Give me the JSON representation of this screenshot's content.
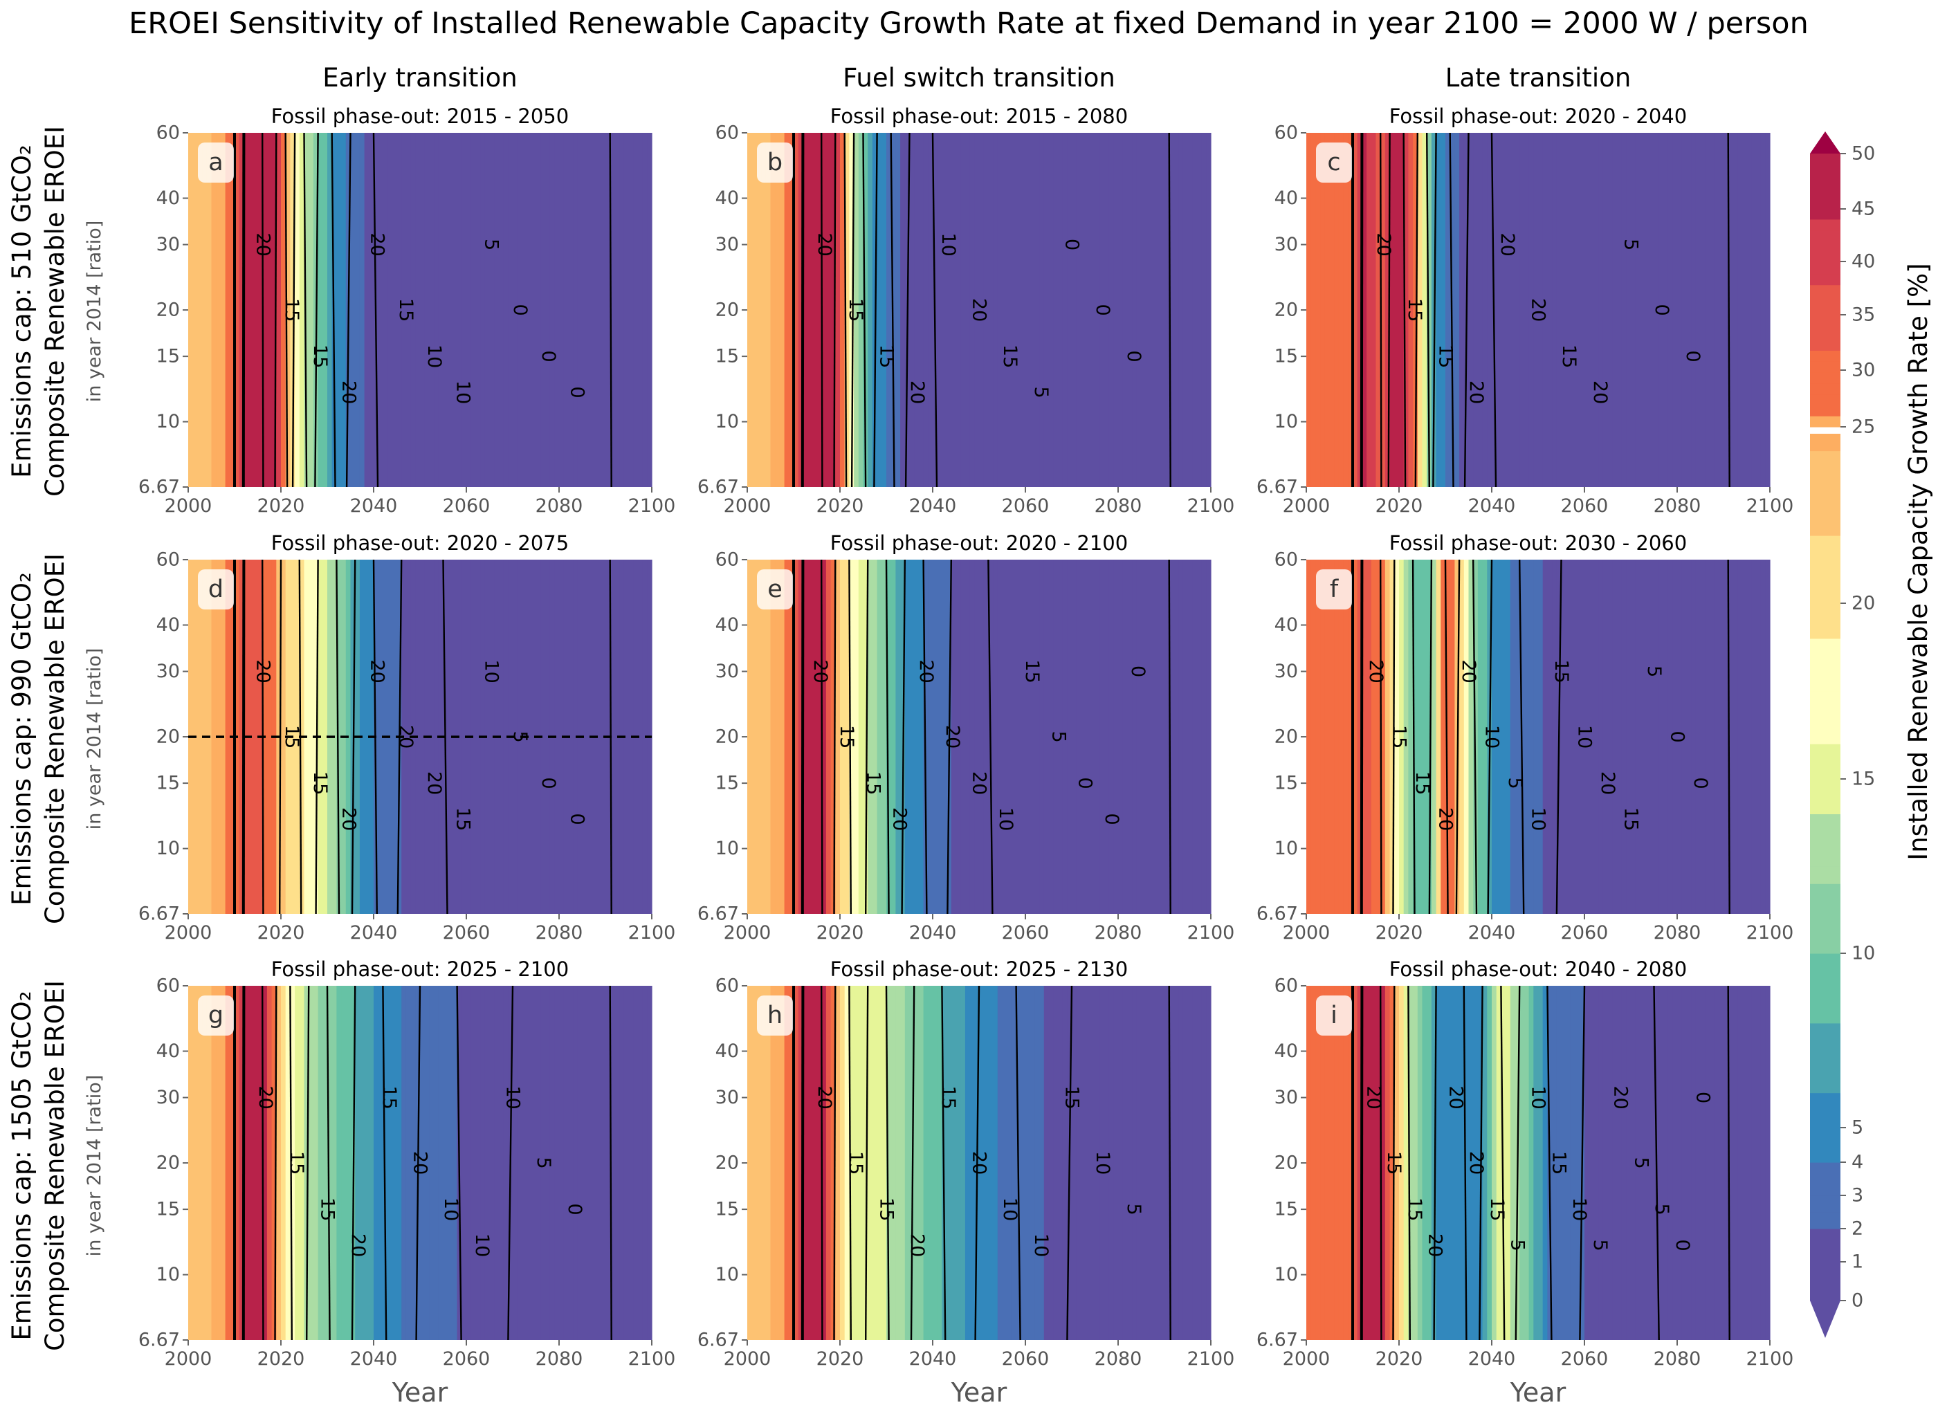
{
  "figure": {
    "title": "EROEI Sensitivity of Installed Renewable Capacity Growth Rate at fixed Demand in year 2100 = 2000 W / person",
    "columns": [
      "Early transition",
      "Fuel switch transition",
      "Late transition"
    ],
    "rows": [
      {
        "main": "Emissions cap: 510 GtCO₂",
        "sub": "Composite Renewable EROEI",
        "ratio": "in year 2014 [ratio]"
      },
      {
        "main": "Emissions cap: 990 GtCO₂",
        "sub": "Composite Renewable EROEI",
        "ratio": "in year 2014 [ratio]"
      },
      {
        "main": "Emissions cap: 1505 GtCO₂",
        "sub": "Composite Renewable EROEI",
        "ratio": "in year 2014 [ratio]"
      }
    ],
    "xlabel": "Year",
    "colorbar_label": "Installed Renewable Capacity Growth Rate [%]"
  },
  "colors": {
    "deep_red": "#9e0142",
    "red": "#d53e4f",
    "orange_red": "#f46d43",
    "orange": "#fdae61",
    "light_orange": "#fee08b",
    "pale_yellow": "#ffffbf",
    "light_green": "#e6f598",
    "green": "#abdda4",
    "teal": "#66c2a5",
    "blue": "#3288bd",
    "purple": "#5e4fa2"
  },
  "chart_data": [
    {
      "type": "heatmap",
      "panel": "a",
      "title": "Fossil phase-out: 2015 - 2050",
      "xlabel": "",
      "ylabel": "",
      "xlim": [
        2000,
        2100
      ],
      "ylim": [
        6.67,
        60
      ],
      "yscale": "log",
      "x_ticks": [
        "2000",
        "2020",
        "2040",
        "2060",
        "2080",
        "2100"
      ],
      "y_ticks": [
        "6.67",
        "10",
        "15",
        "20",
        "30",
        "40",
        "60"
      ],
      "growth_profile": {
        "years": [
          2000,
          2004,
          2008,
          2010,
          2012,
          2016,
          2019,
          2021,
          2023,
          2025,
          2028,
          2031,
          2035,
          2040,
          2100
        ],
        "rates": [
          22,
          24,
          26,
          28,
          48,
          48,
          47,
          24,
          18,
          14,
          10,
          6,
          3,
          1,
          0
        ]
      },
      "contour_labels": [
        "20",
        "15",
        "15",
        "20",
        "20",
        "15",
        "10",
        "10",
        "5",
        "0",
        "0",
        "0"
      ]
    },
    {
      "type": "heatmap",
      "panel": "b",
      "title": "Fossil phase-out: 2015 - 2080",
      "xlabel": "",
      "ylabel": "",
      "xlim": [
        2000,
        2100
      ],
      "ylim": [
        6.67,
        60
      ],
      "yscale": "log",
      "x_ticks": [
        "2000",
        "2020",
        "2040",
        "2060",
        "2080",
        "2100"
      ],
      "y_ticks": [
        "6.67",
        "10",
        "15",
        "20",
        "30",
        "40",
        "60"
      ],
      "growth_profile": {
        "years": [
          2000,
          2004,
          2008,
          2010,
          2012,
          2016,
          2019,
          2021,
          2023,
          2025,
          2028,
          2031,
          2035,
          2040,
          2100
        ],
        "rates": [
          22,
          24,
          26,
          28,
          48,
          48,
          47,
          22,
          14,
          9,
          5,
          3,
          1,
          0.5,
          0
        ]
      },
      "contour_labels": [
        "20",
        "15",
        "15",
        "20",
        "10",
        "20",
        "15",
        "5",
        "0",
        "0",
        "0"
      ]
    },
    {
      "type": "heatmap",
      "panel": "c",
      "title": "Fossil phase-out: 2020 - 2040",
      "xlabel": "",
      "ylabel": "",
      "xlim": [
        2000,
        2100
      ],
      "ylim": [
        6.67,
        60
      ],
      "yscale": "log",
      "x_ticks": [
        "2000",
        "2020",
        "2040",
        "2060",
        "2080",
        "2100"
      ],
      "y_ticks": [
        "6.67",
        "10",
        "15",
        "20",
        "30",
        "40",
        "60"
      ],
      "growth_profile": {
        "years": [
          2000,
          2004,
          2008,
          2010,
          2012,
          2016,
          2018,
          2021,
          2024,
          2026,
          2028,
          2031,
          2035,
          2040,
          2100
        ],
        "rates": [
          26,
          27,
          28,
          30,
          48,
          34,
          47,
          47,
          22,
          12,
          6,
          3,
          1,
          0,
          0
        ]
      },
      "contour_labels": [
        "20",
        "15",
        "15",
        "20",
        "20",
        "20",
        "15",
        "20",
        "5",
        "0",
        "0"
      ]
    },
    {
      "type": "heatmap",
      "panel": "d",
      "title": "Fossil phase-out: 2020 - 2075",
      "xlabel": "",
      "ylabel": "",
      "xlim": [
        2000,
        2100
      ],
      "ylim": [
        6.67,
        60
      ],
      "yscale": "log",
      "x_ticks": [
        "2000",
        "2020",
        "2040",
        "2060",
        "2080",
        "2100"
      ],
      "y_ticks": [
        "6.67",
        "10",
        "15",
        "20",
        "30",
        "40",
        "60"
      ],
      "growth_profile": {
        "years": [
          2000,
          2004,
          2008,
          2010,
          2012,
          2016,
          2020,
          2024,
          2028,
          2032,
          2036,
          2040,
          2046,
          2055,
          2100
        ],
        "rates": [
          22,
          24,
          26,
          28,
          34,
          33,
          23,
          20,
          16,
          12,
          7,
          4,
          2,
          1,
          0
        ]
      },
      "reference_line_y": 20,
      "contour_labels": [
        "20",
        "15",
        "15",
        "20",
        "20",
        "20",
        "20",
        "15",
        "10",
        "5",
        "0",
        "0"
      ]
    },
    {
      "type": "heatmap",
      "panel": "e",
      "title": "Fossil phase-out: 2020 - 2100",
      "xlabel": "",
      "ylabel": "",
      "xlim": [
        2000,
        2100
      ],
      "ylim": [
        6.67,
        60
      ],
      "yscale": "log",
      "x_ticks": [
        "2000",
        "2020",
        "2040",
        "2060",
        "2080",
        "2100"
      ],
      "y_ticks": [
        "6.67",
        "10",
        "15",
        "20",
        "30",
        "40",
        "60"
      ],
      "growth_profile": {
        "years": [
          2000,
          2004,
          2008,
          2010,
          2012,
          2016,
          2019,
          2022,
          2026,
          2030,
          2034,
          2038,
          2044,
          2052,
          2100
        ],
        "rates": [
          22,
          24,
          26,
          28,
          48,
          48,
          24,
          19,
          14,
          10,
          6,
          4,
          2,
          1,
          0
        ]
      },
      "contour_labels": [
        "20",
        "15",
        "15",
        "20",
        "20",
        "20",
        "20",
        "10",
        "15",
        "5",
        "0",
        "0",
        "0"
      ]
    },
    {
      "type": "heatmap",
      "panel": "f",
      "title": "Fossil phase-out: 2030 - 2060",
      "xlabel": "",
      "ylabel": "",
      "xlim": [
        2000,
        2100
      ],
      "ylim": [
        6.67,
        60
      ],
      "yscale": "log",
      "x_ticks": [
        "2000",
        "2020",
        "2040",
        "2060",
        "2080",
        "2100"
      ],
      "y_ticks": [
        "6.67",
        "10",
        "15",
        "20",
        "30",
        "40",
        "60"
      ],
      "growth_profile": {
        "years": [
          2000,
          2004,
          2008,
          2010,
          2012,
          2016,
          2019,
          2023,
          2027,
          2030,
          2033,
          2036,
          2040,
          2046,
          2055,
          2100
        ],
        "rates": [
          26,
          27,
          28,
          30,
          34,
          30,
          18,
          10,
          9,
          30,
          22,
          12,
          6,
          3,
          1,
          0
        ]
      },
      "contour_labels": [
        "20",
        "15",
        "15",
        "20",
        "20",
        "10",
        "5",
        "10",
        "15",
        "10",
        "20",
        "15",
        "5",
        "0",
        "0"
      ]
    },
    {
      "type": "heatmap",
      "panel": "g",
      "title": "Fossil phase-out: 2025 - 2100",
      "xlabel": "",
      "ylabel": "",
      "xlim": [
        2000,
        2100
      ],
      "ylim": [
        6.67,
        60
      ],
      "yscale": "log",
      "x_ticks": [
        "2000",
        "2020",
        "2040",
        "2060",
        "2080",
        "2100"
      ],
      "y_ticks": [
        "6.67",
        "10",
        "15",
        "20",
        "30",
        "40",
        "60"
      ],
      "growth_profile": {
        "years": [
          2000,
          2004,
          2008,
          2010,
          2012,
          2016,
          2019,
          2022,
          2026,
          2030,
          2036,
          2042,
          2050,
          2058,
          2070,
          2100
        ],
        "rates": [
          22,
          24,
          26,
          28,
          48,
          48,
          24,
          17,
          13,
          11,
          8,
          5,
          3,
          2,
          1,
          0.5
        ]
      },
      "contour_labels": [
        "20",
        "15",
        "15",
        "20",
        "15",
        "20",
        "10",
        "10",
        "10",
        "5",
        "0"
      ]
    },
    {
      "type": "heatmap",
      "panel": "h",
      "title": "Fossil phase-out: 2025 - 2130",
      "xlabel": "",
      "ylabel": "",
      "xlim": [
        2000,
        2100
      ],
      "ylim": [
        6.67,
        60
      ],
      "yscale": "log",
      "x_ticks": [
        "2000",
        "2020",
        "2040",
        "2060",
        "2080",
        "2100"
      ],
      "y_ticks": [
        "6.67",
        "10",
        "15",
        "20",
        "30",
        "40",
        "60"
      ],
      "growth_profile": {
        "years": [
          2000,
          2004,
          2008,
          2010,
          2012,
          2016,
          2019,
          2022,
          2026,
          2030,
          2036,
          2042,
          2050,
          2058,
          2070,
          2100
        ],
        "rates": [
          22,
          24,
          26,
          28,
          48,
          48,
          24,
          16,
          15,
          14,
          11,
          8,
          5,
          3,
          1,
          0.5
        ]
      },
      "contour_labels": [
        "20",
        "15",
        "15",
        "20",
        "15",
        "20",
        "10",
        "10",
        "15",
        "10",
        "5"
      ]
    },
    {
      "type": "heatmap",
      "panel": "i",
      "title": "Fossil phase-out: 2040 - 2080",
      "xlabel": "",
      "ylabel": "",
      "xlim": [
        2000,
        2100
      ],
      "ylim": [
        6.67,
        60
      ],
      "yscale": "log",
      "x_ticks": [
        "2000",
        "2020",
        "2040",
        "2060",
        "2080",
        "2100"
      ],
      "y_ticks": [
        "6.67",
        "10",
        "15",
        "20",
        "30",
        "40",
        "60"
      ],
      "growth_profile": {
        "years": [
          2000,
          2004,
          2008,
          2010,
          2012,
          2016,
          2019,
          2022,
          2028,
          2034,
          2038,
          2042,
          2046,
          2052,
          2060,
          2075,
          2100
        ],
        "rates": [
          26,
          27,
          28,
          30,
          48,
          48,
          24,
          14,
          6,
          4,
          6,
          16,
          12,
          4,
          2,
          1,
          0
        ]
      },
      "contour_labels": [
        "20",
        "15",
        "15",
        "20",
        "20",
        "20",
        "15",
        "5",
        "10",
        "15",
        "10",
        "5",
        "20",
        "5",
        "5",
        "0",
        "0"
      ]
    }
  ],
  "colorbar": {
    "tick_labels": [
      "0",
      "1",
      "2",
      "3",
      "4",
      "5",
      "10",
      "15",
      "20",
      "25",
      "25",
      "30",
      "35",
      "40",
      "45",
      "50"
    ],
    "extend": "both"
  }
}
